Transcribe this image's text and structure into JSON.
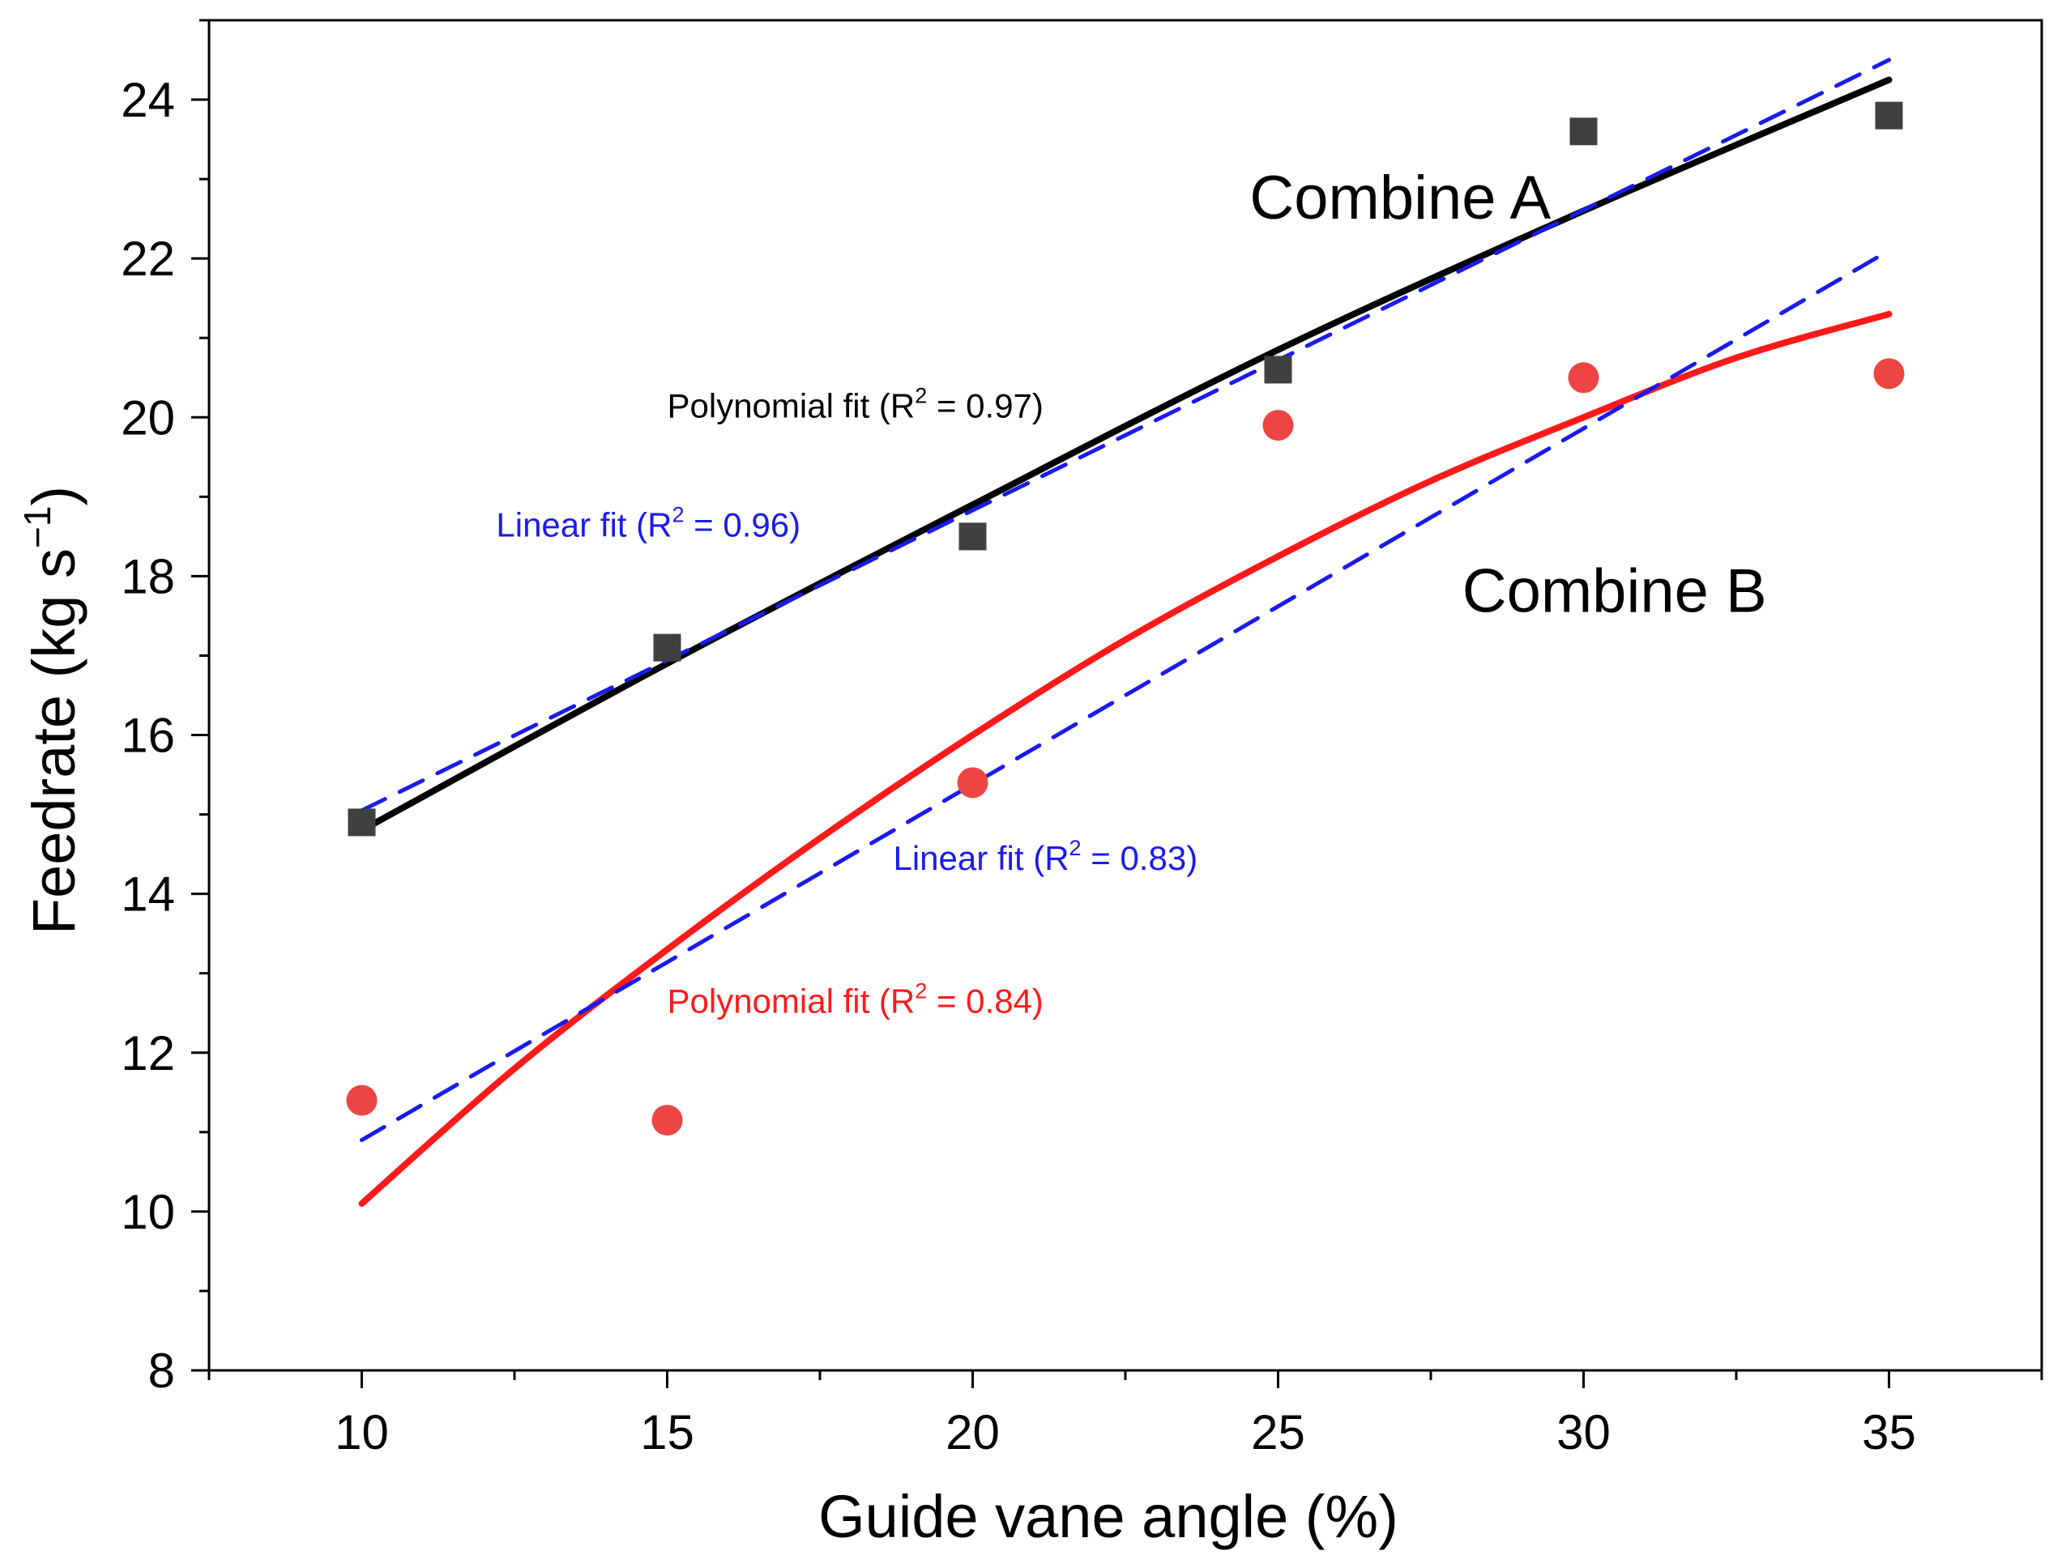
{
  "chart_data": {
    "type": "scatter",
    "title": "",
    "xlabel": "Guide vane angle (%)",
    "ylabel_main": "Feedrate (kg s",
    "ylabel_sup": "−1",
    "ylabel_close": ")",
    "xlim": [
      7.5,
      37.5
    ],
    "ylim": [
      8,
      25
    ],
    "x_ticks": [
      10,
      15,
      20,
      25,
      30,
      35
    ],
    "x_tick_labels": [
      "10",
      "15",
      "20",
      "25",
      "30",
      "35"
    ],
    "y_ticks": [
      8,
      10,
      12,
      14,
      16,
      18,
      20,
      22,
      24
    ],
    "y_tick_labels": [
      "8",
      "10",
      "12",
      "14",
      "16",
      "18",
      "20",
      "22",
      "24"
    ],
    "grid": false,
    "series": [
      {
        "name": "Combine A",
        "marker": "square",
        "color": "#404040",
        "x": [
          10,
          15,
          20,
          25,
          30,
          35
        ],
        "y": [
          14.9,
          17.1,
          18.5,
          20.6,
          23.6,
          23.8
        ]
      },
      {
        "name": "Combine B",
        "marker": "circle",
        "color": "#ee4444",
        "x": [
          10,
          15,
          20,
          25,
          30,
          35
        ],
        "y": [
          11.4,
          11.15,
          15.4,
          19.9,
          20.5,
          20.55
        ]
      }
    ],
    "fits": [
      {
        "name": "Combine A polynomial fit",
        "style": "solid",
        "color": "#000000",
        "x": [
          10,
          15,
          20,
          25,
          30,
          35
        ],
        "y": [
          14.8,
          16.9,
          18.9,
          20.85,
          22.6,
          24.25
        ]
      },
      {
        "name": "Combine A linear fit",
        "style": "dashed",
        "color": "#1a1aee",
        "x": [
          10,
          35
        ],
        "y": [
          15.05,
          24.5
        ]
      },
      {
        "name": "Combine B polynomial fit",
        "style": "solid",
        "color": "#ff1a1a",
        "x": [
          10,
          12.5,
          15,
          17.5,
          20,
          22.5,
          25,
          27.5,
          30,
          32.5,
          35
        ],
        "y": [
          10.1,
          11.8,
          13.3,
          14.7,
          16.0,
          17.2,
          18.25,
          19.2,
          20.0,
          20.75,
          21.3
        ]
      },
      {
        "name": "Combine B linear fit",
        "style": "dashed",
        "color": "#1a1aee",
        "x": [
          10,
          35
        ],
        "y": [
          10.9,
          22.1
        ]
      }
    ],
    "annotations": [
      {
        "label": "Combine A",
        "x": 27,
        "y": 22.5,
        "anchor": "middle",
        "color": "#000000",
        "size": "large"
      },
      {
        "label": "Combine B",
        "x": 33,
        "y": 17.55,
        "anchor": "end",
        "color": "#000000",
        "size": "large"
      },
      {
        "label": "Polynomial fit (R",
        "sup": "2",
        "tail": " = 0.97)",
        "x": 15,
        "y": 20.0,
        "color": "#000000",
        "size": "small"
      },
      {
        "label": "Linear fit (R",
        "sup": "2",
        "tail": " = 0.96)",
        "x": 12.2,
        "y": 18.5,
        "color": "#1a1aee",
        "size": "small"
      },
      {
        "label": "Linear fit (R",
        "sup": "2",
        "tail": " = 0.83)",
        "x": 18.7,
        "y": 14.3,
        "color": "#1a1aee",
        "size": "small"
      },
      {
        "label": "Polynomial fit (R",
        "sup": "2",
        "tail": " = 0.84)",
        "x": 15,
        "y": 12.5,
        "color": "#ff1a1a",
        "size": "small"
      }
    ]
  }
}
